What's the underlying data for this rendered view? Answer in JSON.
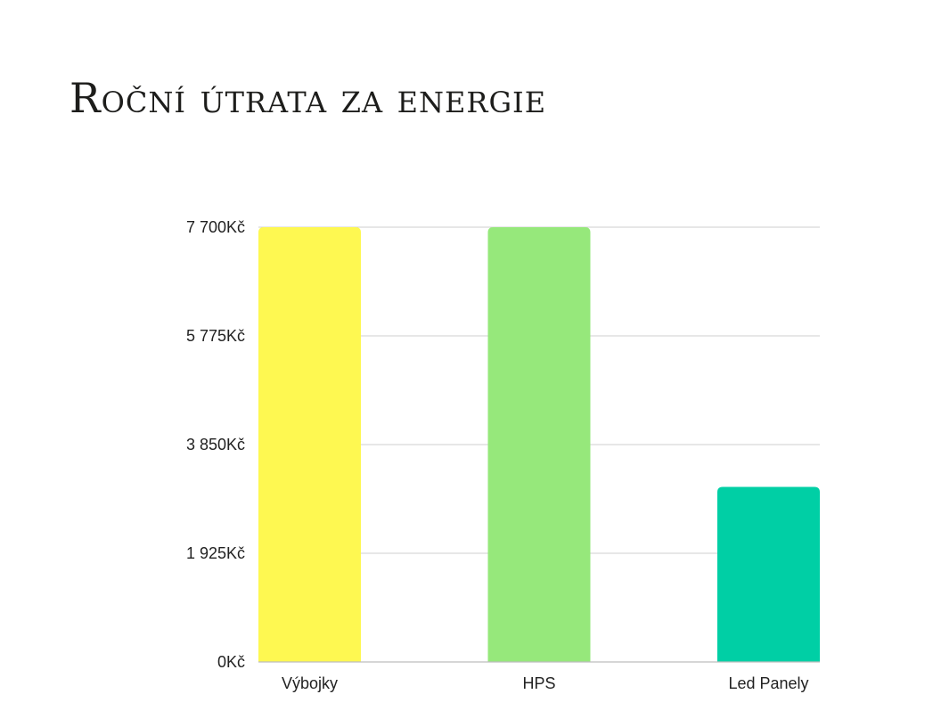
{
  "title": "Roční útrata za energie",
  "chart_data": {
    "type": "bar",
    "title": "Roční útrata za energie",
    "xlabel": "",
    "ylabel": "",
    "categories": [
      "Výbojky",
      "HPS",
      "Led Panely"
    ],
    "values": [
      7700,
      7700,
      3100
    ],
    "colors": [
      "#fef851",
      "#96e87b",
      "#00cfa5"
    ],
    "ylim": [
      0,
      7700
    ],
    "yticks": [
      0,
      1925,
      3850,
      5775,
      7700
    ],
    "ytick_labels": [
      "0Kč",
      "1 925Kč",
      "3 850Kč",
      "5 775Kč",
      "7 700Kč"
    ],
    "grid": true,
    "legend": "none"
  }
}
